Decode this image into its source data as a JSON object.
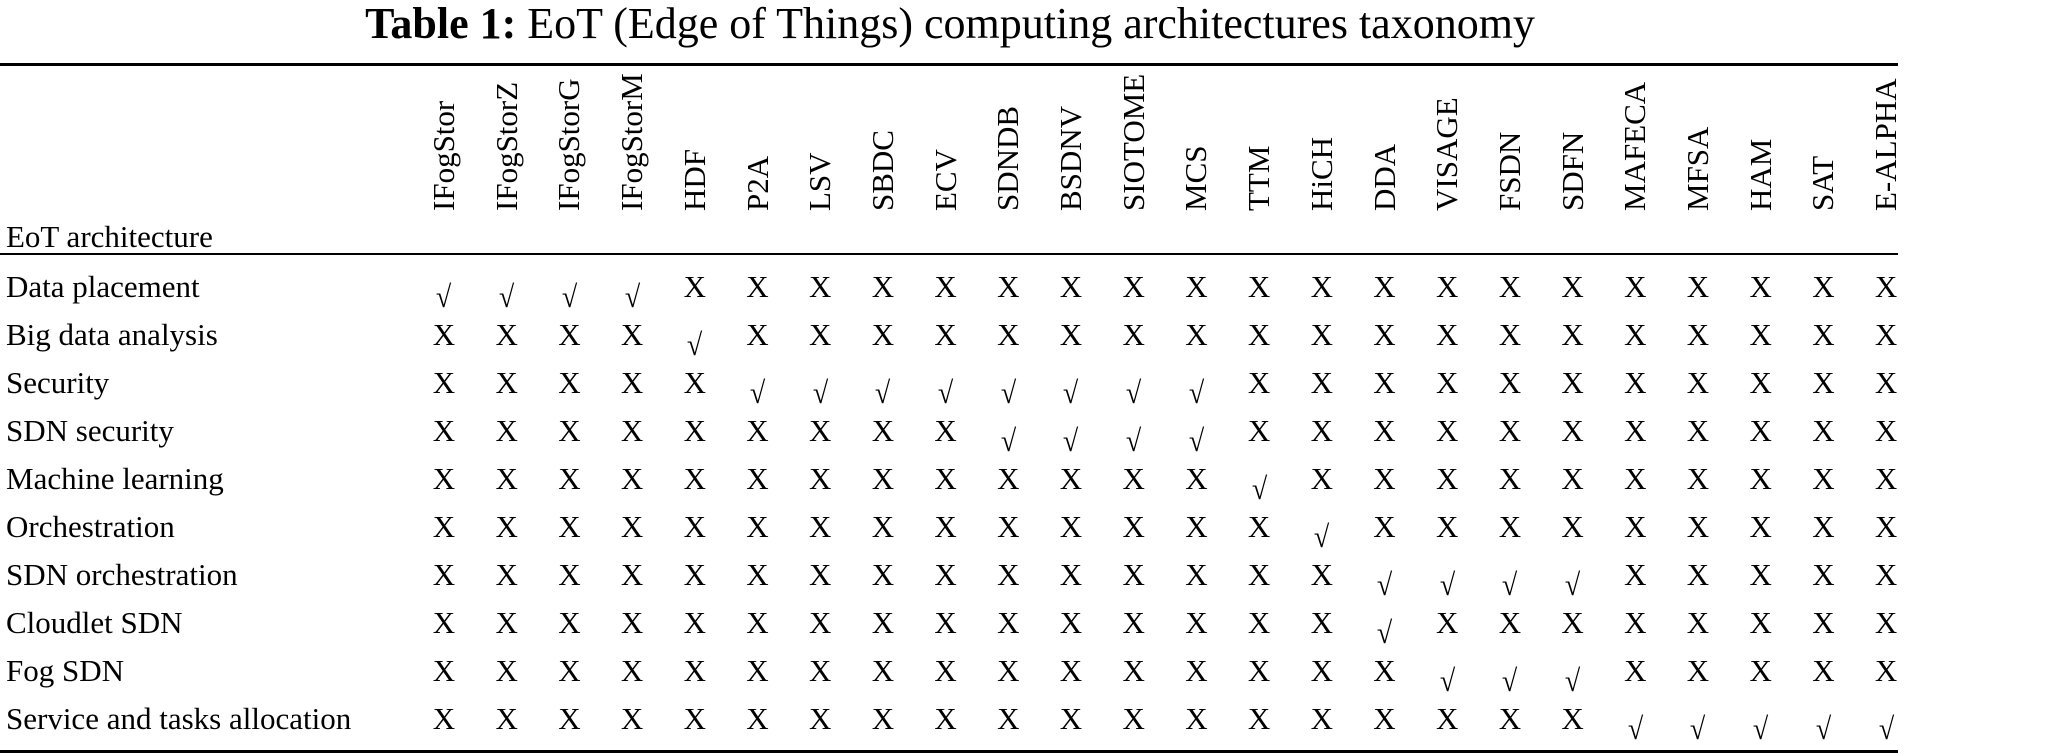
{
  "caption": {
    "label": "Table 1:",
    "text": "EoT (Edge of Things) computing architectures taxonomy"
  },
  "table": {
    "stub_header": "EoT architecture",
    "columns": [
      "IFogStor",
      "IFogStorZ",
      "IFogStorG",
      "IFogStorM",
      "HDF",
      "P2A",
      "LSV",
      "SBDC",
      "ECV",
      "SDNDB",
      "BSDNV",
      "SIOTOME",
      "MCS",
      "TTM",
      "HiCH",
      "DDA",
      "VISAGE",
      "FSDN",
      "SDFN",
      "MAFECA",
      "MFSA",
      "HAM",
      "SAT",
      "E-ALPHA"
    ],
    "symbols": {
      "yes": "√",
      "no": "X"
    },
    "rows": [
      {
        "label": "Data placement",
        "values": [
          1,
          1,
          1,
          1,
          0,
          0,
          0,
          0,
          0,
          0,
          0,
          0,
          0,
          0,
          0,
          0,
          0,
          0,
          0,
          0,
          0,
          0,
          0,
          0
        ]
      },
      {
        "label": "Big data analysis",
        "values": [
          0,
          0,
          0,
          0,
          1,
          0,
          0,
          0,
          0,
          0,
          0,
          0,
          0,
          0,
          0,
          0,
          0,
          0,
          0,
          0,
          0,
          0,
          0,
          0
        ]
      },
      {
        "label": "Security",
        "values": [
          0,
          0,
          0,
          0,
          0,
          1,
          1,
          1,
          1,
          1,
          1,
          1,
          1,
          0,
          0,
          0,
          0,
          0,
          0,
          0,
          0,
          0,
          0,
          0
        ]
      },
      {
        "label": "SDN security",
        "values": [
          0,
          0,
          0,
          0,
          0,
          0,
          0,
          0,
          0,
          1,
          1,
          1,
          1,
          0,
          0,
          0,
          0,
          0,
          0,
          0,
          0,
          0,
          0,
          0
        ]
      },
      {
        "label": "Machine learning",
        "values": [
          0,
          0,
          0,
          0,
          0,
          0,
          0,
          0,
          0,
          0,
          0,
          0,
          0,
          1,
          0,
          0,
          0,
          0,
          0,
          0,
          0,
          0,
          0,
          0
        ]
      },
      {
        "label": "Orchestration",
        "values": [
          0,
          0,
          0,
          0,
          0,
          0,
          0,
          0,
          0,
          0,
          0,
          0,
          0,
          0,
          1,
          0,
          0,
          0,
          0,
          0,
          0,
          0,
          0,
          0
        ]
      },
      {
        "label": "SDN orchestration",
        "values": [
          0,
          0,
          0,
          0,
          0,
          0,
          0,
          0,
          0,
          0,
          0,
          0,
          0,
          0,
          0,
          1,
          1,
          1,
          1,
          0,
          0,
          0,
          0,
          0
        ]
      },
      {
        "label": "Cloudlet SDN",
        "values": [
          0,
          0,
          0,
          0,
          0,
          0,
          0,
          0,
          0,
          0,
          0,
          0,
          0,
          0,
          0,
          1,
          0,
          0,
          0,
          0,
          0,
          0,
          0,
          0
        ]
      },
      {
        "label": "Fog SDN",
        "values": [
          0,
          0,
          0,
          0,
          0,
          0,
          0,
          0,
          0,
          0,
          0,
          0,
          0,
          0,
          0,
          0,
          1,
          1,
          1,
          0,
          0,
          0,
          0,
          0
        ]
      },
      {
        "label": "Service and tasks allocation",
        "values": [
          0,
          0,
          0,
          0,
          0,
          0,
          0,
          0,
          0,
          0,
          0,
          0,
          0,
          0,
          0,
          0,
          0,
          0,
          0,
          1,
          1,
          1,
          1,
          1
        ]
      }
    ]
  }
}
